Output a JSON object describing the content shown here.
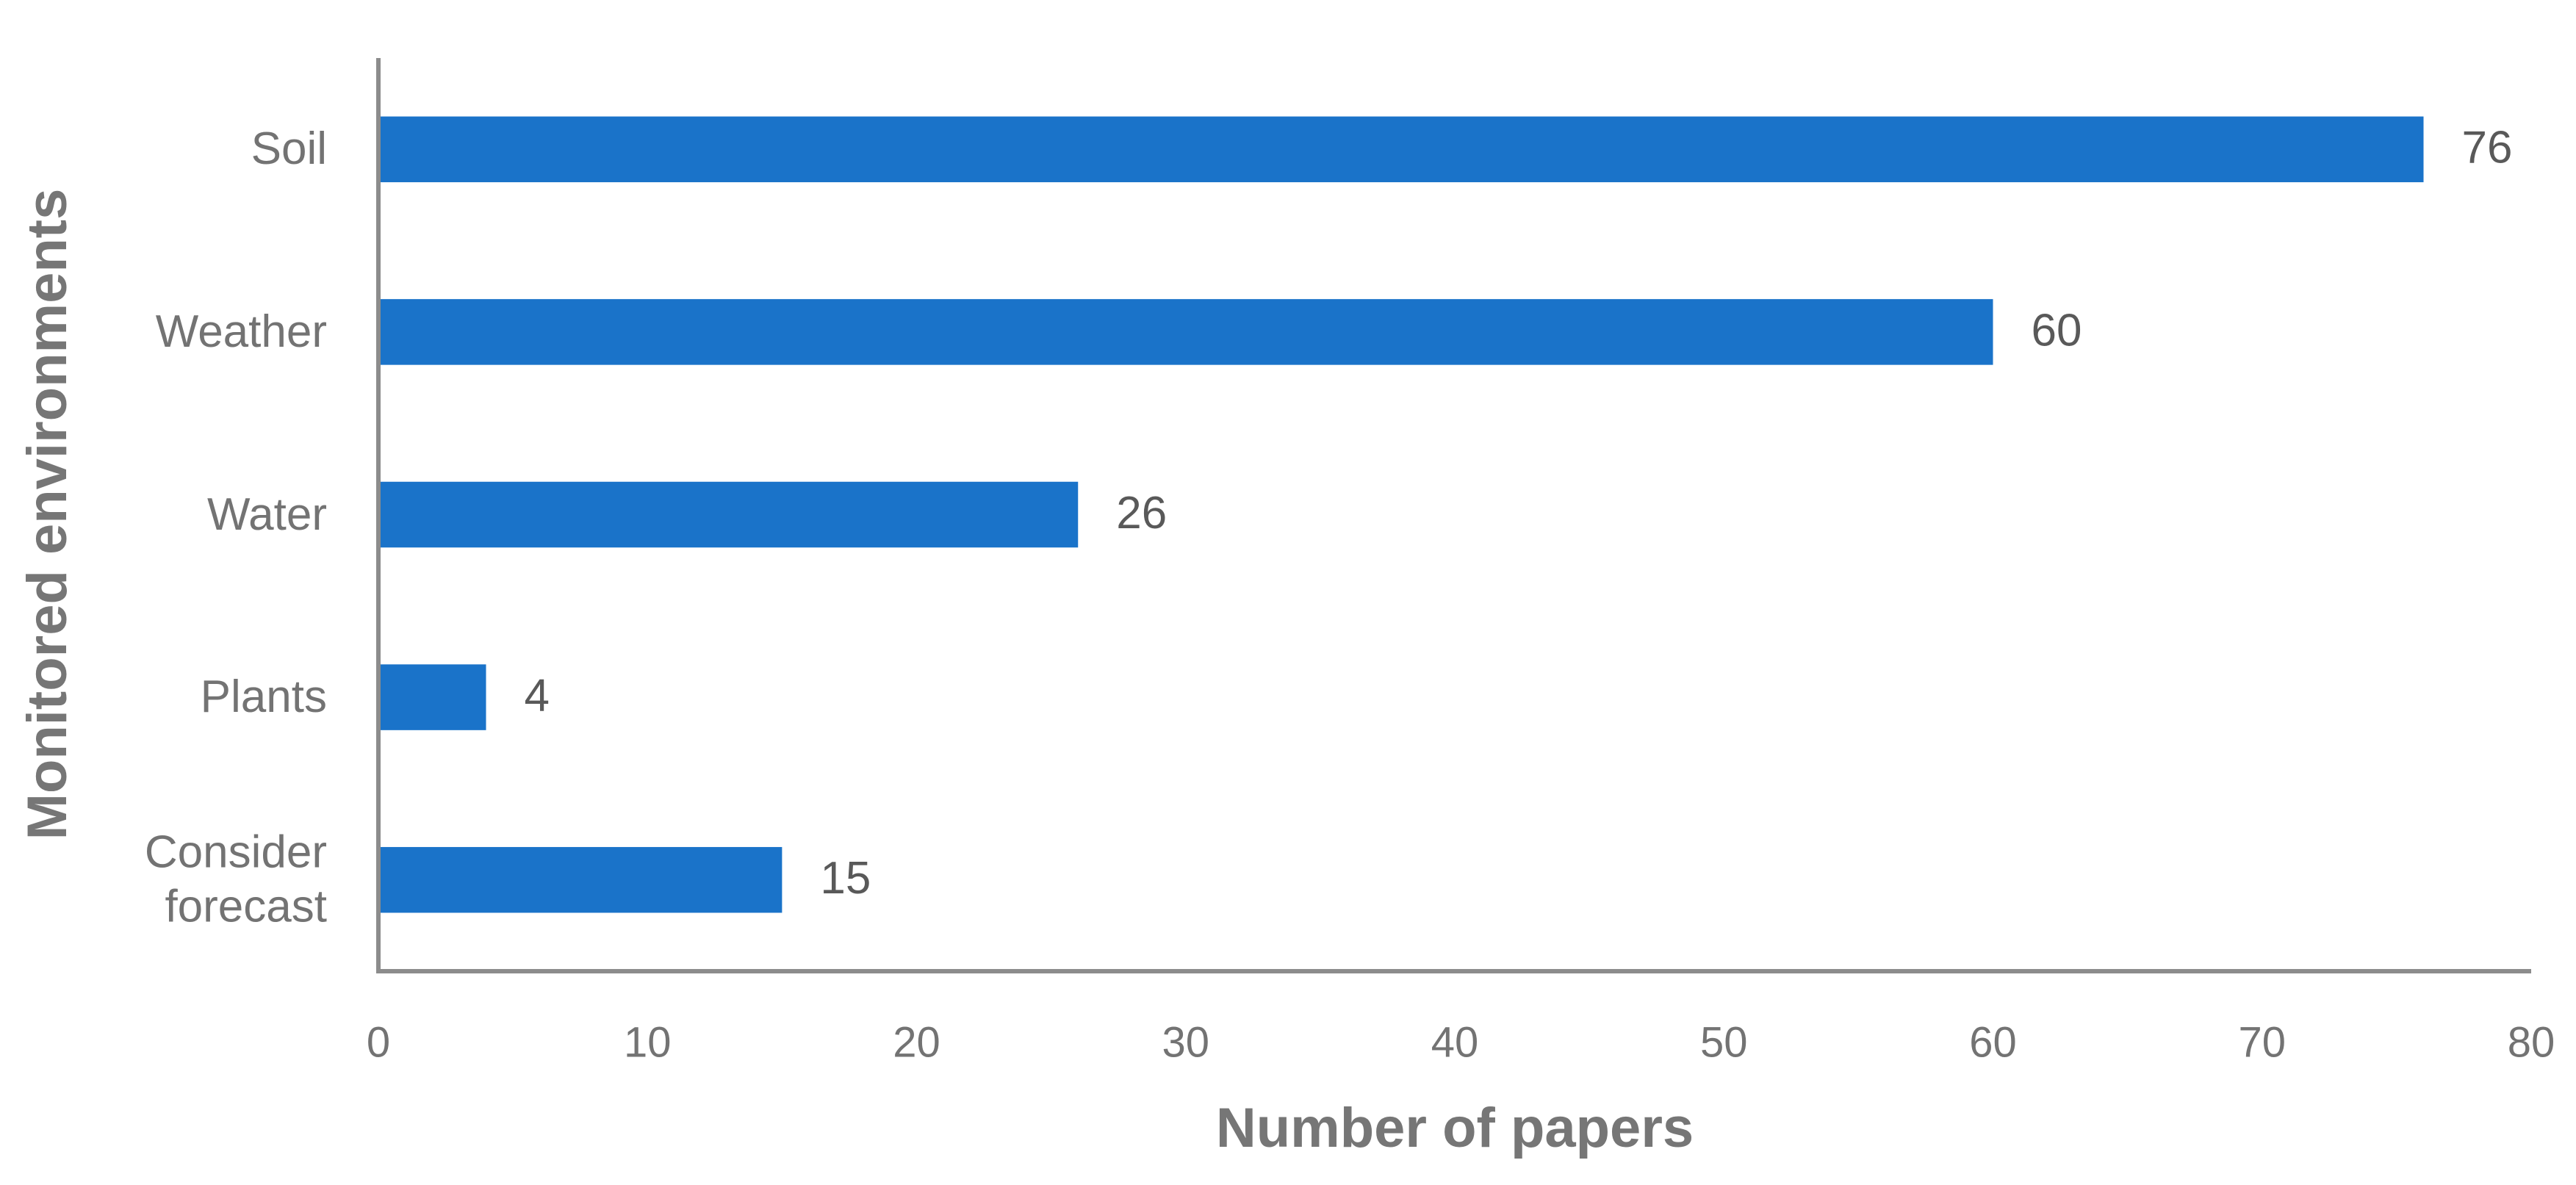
{
  "chart_data": {
    "type": "bar",
    "orientation": "horizontal",
    "x_label": "Number of papers",
    "y_label": "Monitored environments",
    "categories": [
      "Soil",
      "Weather",
      "Water",
      "Plants",
      "Consider forecast"
    ],
    "values": [
      76,
      60,
      26,
      4,
      15
    ],
    "color": "#1a73c9",
    "xlim": [
      0,
      80
    ],
    "xticks": [
      0,
      10,
      20,
      30,
      40,
      50,
      60,
      70,
      80
    ],
    "grid": false
  }
}
